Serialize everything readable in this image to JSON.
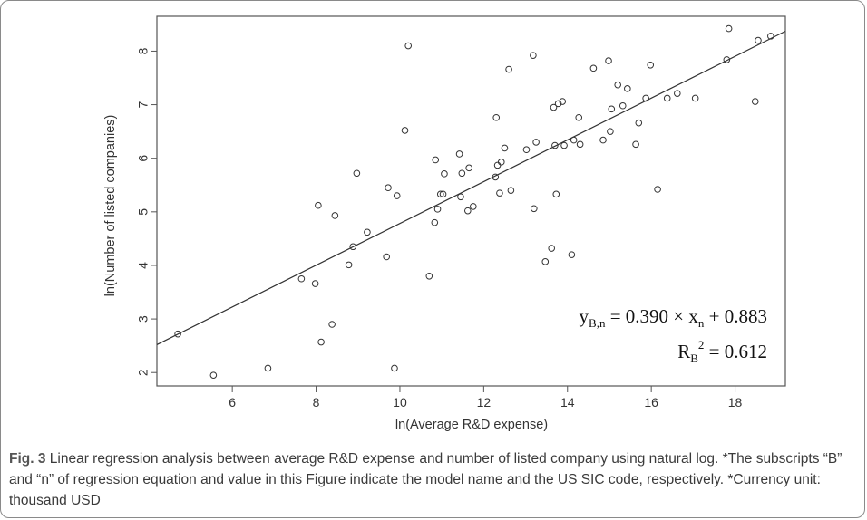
{
  "caption": {
    "label": "Fig. 3",
    "text": " Linear regression analysis between average R&D expense and number of listed company using natural log. *The subscripts “B” and “n” of regression equation and value in this Figure indicate the model name and the US SIC code, respectively. *Currency unit: thousand USD"
  },
  "chart_data": {
    "type": "scatter",
    "xlabel": "ln(Average R&D expense)",
    "ylabel": "ln(Number of listed companies)",
    "xlim": [
      4.2,
      19.2
    ],
    "ylim": [
      1.75,
      8.65
    ],
    "xticks": [
      6,
      8,
      10,
      12,
      14,
      16,
      18
    ],
    "yticks": [
      2,
      3,
      4,
      5,
      6,
      7,
      8
    ],
    "grid": false,
    "regression": {
      "slope": 0.39,
      "intercept": 0.883
    },
    "annotations": {
      "equation": {
        "y": "y",
        "y_sub": "B,n",
        "middle": " = 0.390 × x",
        "x_sub": "n",
        "tail": " + 0.883"
      },
      "r2": {
        "r": "R",
        "r_sub": "B",
        "r_sup": "2",
        "tail": " = 0.612"
      }
    },
    "points": [
      [
        4.7,
        2.72
      ],
      [
        5.55,
        1.95
      ],
      [
        6.85,
        2.08
      ],
      [
        7.65,
        3.75
      ],
      [
        7.98,
        3.66
      ],
      [
        8.05,
        5.12
      ],
      [
        8.12,
        2.57
      ],
      [
        8.38,
        2.9
      ],
      [
        8.45,
        4.93
      ],
      [
        8.78,
        4.01
      ],
      [
        8.88,
        4.35
      ],
      [
        8.97,
        5.72
      ],
      [
        9.22,
        4.62
      ],
      [
        9.68,
        4.16
      ],
      [
        9.72,
        5.45
      ],
      [
        9.87,
        2.08
      ],
      [
        9.93,
        5.3
      ],
      [
        10.12,
        6.52
      ],
      [
        10.2,
        8.1
      ],
      [
        10.7,
        3.8
      ],
      [
        10.83,
        4.8
      ],
      [
        10.85,
        5.97
      ],
      [
        10.9,
        5.05
      ],
      [
        10.97,
        5.33
      ],
      [
        11.03,
        5.33
      ],
      [
        11.06,
        5.71
      ],
      [
        11.42,
        6.08
      ],
      [
        11.45,
        5.28
      ],
      [
        11.48,
        5.72
      ],
      [
        11.62,
        5.02
      ],
      [
        11.65,
        5.82
      ],
      [
        11.75,
        5.1
      ],
      [
        12.28,
        5.65
      ],
      [
        12.3,
        6.76
      ],
      [
        12.33,
        5.87
      ],
      [
        12.38,
        5.35
      ],
      [
        12.42,
        5.93
      ],
      [
        12.5,
        6.19
      ],
      [
        12.6,
        7.66
      ],
      [
        12.65,
        5.4
      ],
      [
        13.02,
        6.16
      ],
      [
        13.18,
        7.92
      ],
      [
        13.2,
        5.06
      ],
      [
        13.25,
        6.3
      ],
      [
        13.47,
        4.07
      ],
      [
        13.62,
        4.32
      ],
      [
        13.67,
        6.95
      ],
      [
        13.7,
        6.24
      ],
      [
        13.73,
        5.33
      ],
      [
        13.78,
        7.02
      ],
      [
        13.88,
        7.06
      ],
      [
        13.92,
        6.24
      ],
      [
        14.1,
        4.2
      ],
      [
        14.15,
        6.34
      ],
      [
        14.27,
        6.76
      ],
      [
        14.3,
        6.26
      ],
      [
        14.62,
        7.68
      ],
      [
        14.85,
        6.34
      ],
      [
        14.98,
        7.82
      ],
      [
        15.02,
        6.5
      ],
      [
        15.05,
        6.92
      ],
      [
        15.2,
        7.37
      ],
      [
        15.32,
        6.98
      ],
      [
        15.43,
        7.3
      ],
      [
        15.63,
        6.26
      ],
      [
        15.7,
        6.66
      ],
      [
        15.87,
        7.12
      ],
      [
        15.98,
        7.74
      ],
      [
        16.15,
        5.42
      ],
      [
        16.38,
        7.12
      ],
      [
        16.62,
        7.21
      ],
      [
        17.05,
        7.12
      ],
      [
        17.8,
        7.84
      ],
      [
        17.85,
        8.42
      ],
      [
        18.48,
        7.06
      ],
      [
        18.55,
        8.2
      ],
      [
        18.85,
        8.28
      ]
    ]
  }
}
